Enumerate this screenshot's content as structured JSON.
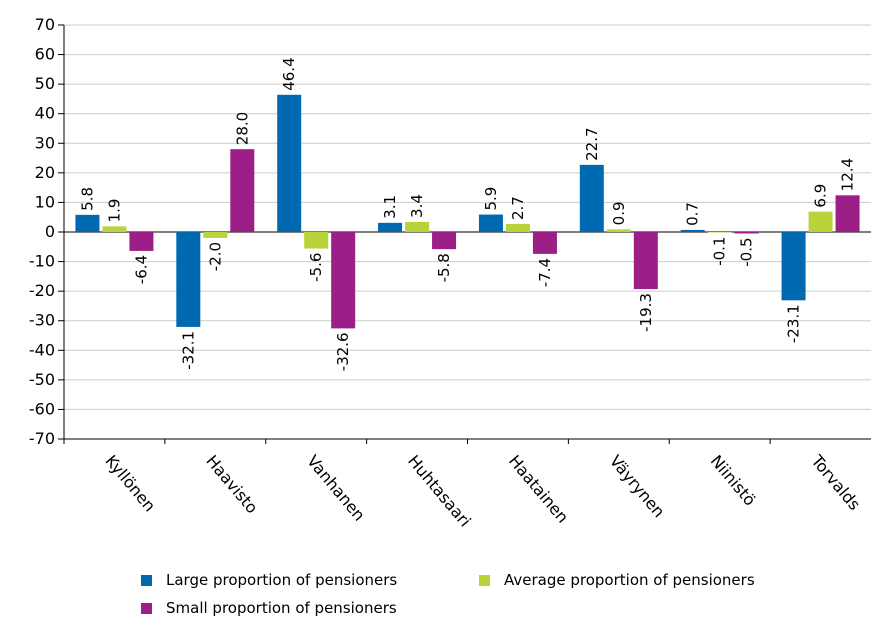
{
  "chart_data": {
    "type": "bar",
    "categories": [
      "Kyllönen",
      "Haavisto",
      "Vanhanen",
      "Huhtasaari",
      "Haatainen",
      "Väyrynen",
      "Niinistö",
      "Torvalds"
    ],
    "series": [
      {
        "name": "Large proportion of pensioners",
        "color": "#006ab0",
        "values": [
          5.8,
          -32.1,
          46.4,
          3.1,
          5.9,
          22.7,
          0.7,
          -23.1
        ]
      },
      {
        "name": "Average proportion of pensioners",
        "color": "#b9d43a",
        "values": [
          1.9,
          -2.0,
          -5.6,
          3.4,
          2.7,
          0.9,
          -0.1,
          6.9
        ]
      },
      {
        "name": "Small proportion of pensioners",
        "color": "#9c1e87",
        "values": [
          -6.4,
          28.0,
          -32.6,
          -5.8,
          -7.4,
          -19.3,
          -0.5,
          12.4
        ]
      }
    ],
    "ylim": [
      -70,
      70
    ],
    "yticks": [
      70,
      60,
      50,
      40,
      30,
      20,
      10,
      0,
      -10,
      -20,
      -30,
      -40,
      -50,
      -60,
      -70
    ],
    "grid": true,
    "legend_position": "bottom",
    "xlabel": "",
    "ylabel": ""
  }
}
